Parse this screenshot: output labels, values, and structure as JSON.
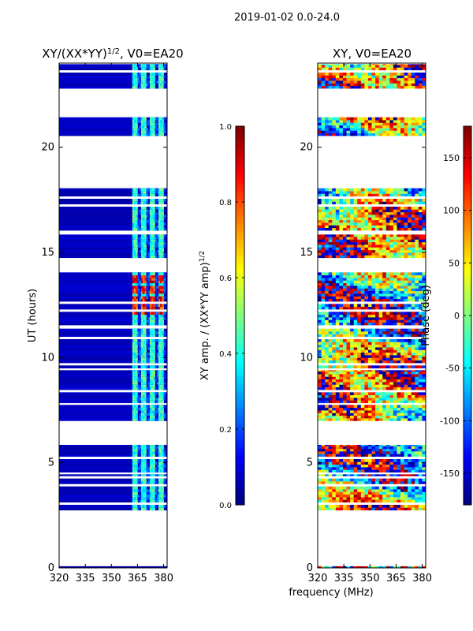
{
  "figure": {
    "suptitle": "2019-01-02 0.0-24.0",
    "xlabel": "frequency (MHz)"
  },
  "colors": {
    "background": "#ffffff",
    "axes": "#000000",
    "no_data": "#ffffff"
  },
  "chart_data": [
    {
      "type": "heatmap",
      "title_main": "XY/(XX*YY)",
      "title_sup": "1/2",
      "title_rest": ", V0=EA20",
      "ylabel": "UT (hours)",
      "xlim": [
        320,
        382
      ],
      "ylim": [
        0,
        24
      ],
      "xticks": [
        320,
        335,
        350,
        365,
        380
      ],
      "yticks": [
        0,
        5,
        10,
        15,
        20
      ],
      "colormap": "jet",
      "colorbar": {
        "label_main": "XY amp. / (XX*YY amp)",
        "label_sup": "1/2",
        "range": [
          0.0,
          1.0
        ],
        "ticks": [
          "0.0",
          "0.2",
          "0.4",
          "0.6",
          "0.8",
          "1.0"
        ]
      }
    },
    {
      "type": "heatmap",
      "title": "XY, V0=EA20",
      "ylabel": "",
      "xlim": [
        320,
        382
      ],
      "ylim": [
        0,
        24
      ],
      "xticks": [
        320,
        335,
        350,
        365,
        380
      ],
      "yticks": [
        0,
        5,
        10,
        15,
        20
      ],
      "colormap": "jet",
      "colorbar": {
        "label": "Phase (deg)",
        "range": [
          -180,
          180
        ],
        "ticks": [
          "-150",
          "-100",
          "-50",
          "0",
          "50",
          "100",
          "150"
        ]
      }
    }
  ],
  "data_segments_ut_hours": [
    [
      2.75,
      4.45
    ],
    [
      4.55,
      5.85
    ],
    [
      7.0,
      7.75
    ],
    [
      7.85,
      9.4
    ],
    [
      9.5,
      11.45
    ],
    [
      11.55,
      14.15
    ],
    [
      14.75,
      15.85
    ],
    [
      16.05,
      18.25
    ],
    [
      20.55,
      21.5
    ],
    [
      22.8,
      23.95
    ]
  ],
  "amplitude_bright_channels_mhz": [
    363,
    368,
    373,
    378
  ],
  "amplitude_bright_ut_hours": [
    12.25,
    12.7,
    13.2,
    13.7
  ]
}
